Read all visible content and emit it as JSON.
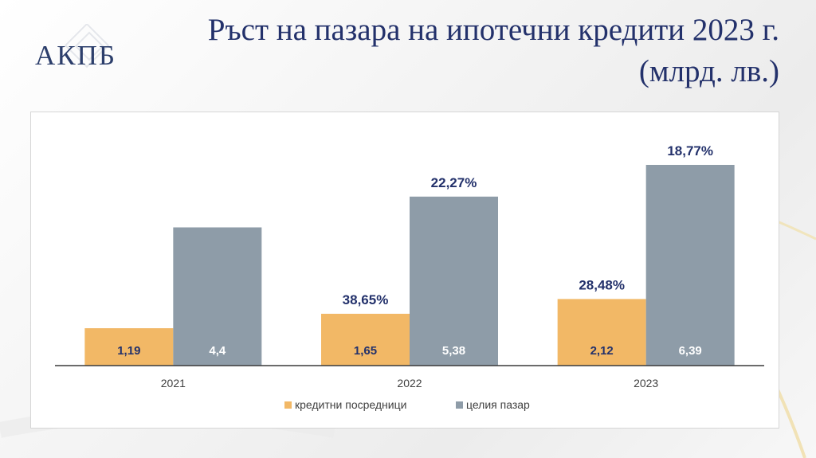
{
  "logo": {
    "text": "АКПБ"
  },
  "title": {
    "line1": "Ръст на пазара на ипотечни кредити 2023 г.",
    "line2": "(млрд. лв.)"
  },
  "chart_data": {
    "type": "bar",
    "categories": [
      "2021",
      "2022",
      "2023"
    ],
    "series": [
      {
        "name": "кредитни посредници",
        "color": "#f2b866",
        "values": [
          1.19,
          1.65,
          2.12
        ],
        "value_labels": [
          "1,19",
          "1,65",
          "2,12"
        ],
        "growth_labels": [
          "",
          "38,65%",
          "28,48%"
        ]
      },
      {
        "name": "целия пазар",
        "color": "#8e9ca8",
        "values": [
          4.4,
          5.38,
          6.39
        ],
        "value_labels": [
          "4,4",
          "5,38",
          "6,39"
        ],
        "growth_labels": [
          "",
          "22,27%",
          "18,77%"
        ]
      }
    ],
    "ylim": [
      0,
      7.1
    ],
    "grid": false,
    "legend_position": "bottom"
  }
}
